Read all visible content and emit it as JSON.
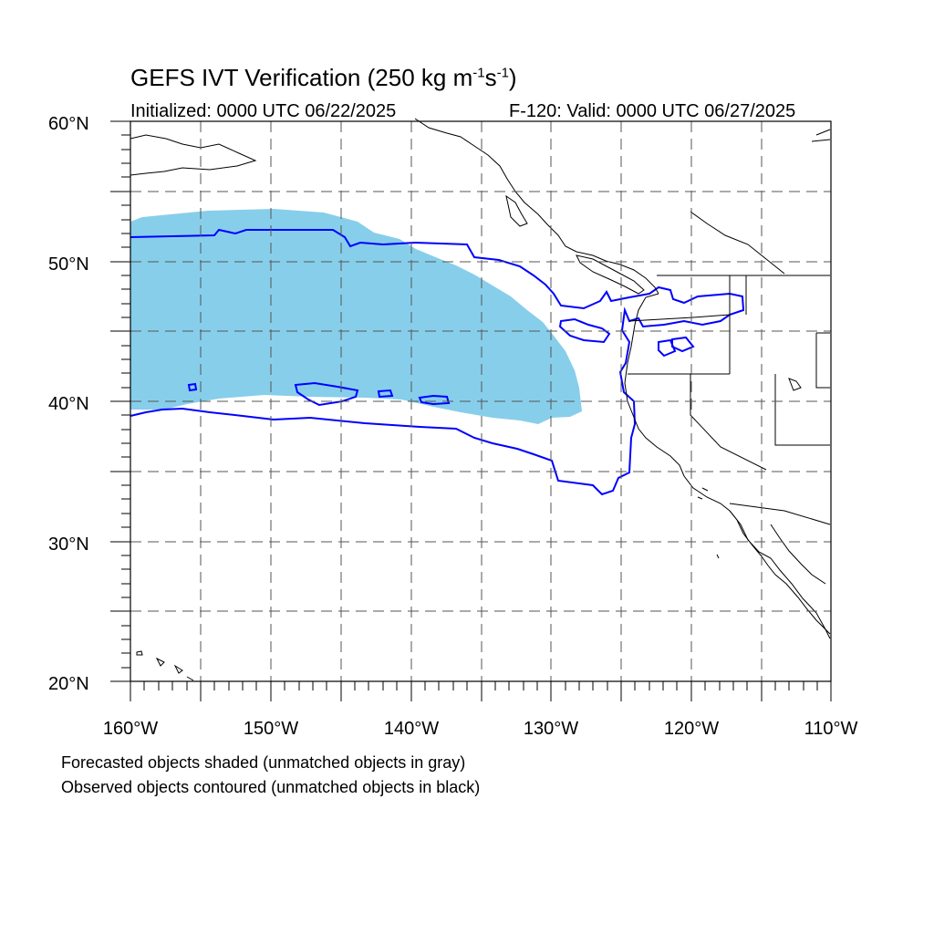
{
  "title": {
    "main": "GEFS IVT Verification (250 kg m",
    "sup1": "-1",
    "mid": "s",
    "sup2": "-1",
    "close": ")"
  },
  "initialized": "Initialized: 0000 UTC 06/22/2025",
  "valid": "F-120: Valid: 0000 UTC 06/27/2025",
  "notes": {
    "forecast": "Forecasted objects shaded (unmatched objects in gray)",
    "observed": "Observed objects contoured (unmatched objects in black)"
  },
  "axes": {
    "lon_labels": [
      "160°W",
      "150°W",
      "140°W",
      "130°W",
      "120°W",
      "110°W"
    ],
    "lat_labels": [
      "60°N",
      "50°N",
      "40°N",
      "30°N",
      "20°N"
    ],
    "lon_range": [
      -160,
      -110
    ],
    "lat_range": [
      20,
      60
    ]
  },
  "colors": {
    "forecast_fill": "#87ceeb",
    "observed_contour": "#0000ff",
    "coast": "#000000",
    "grid": "#555555"
  }
}
